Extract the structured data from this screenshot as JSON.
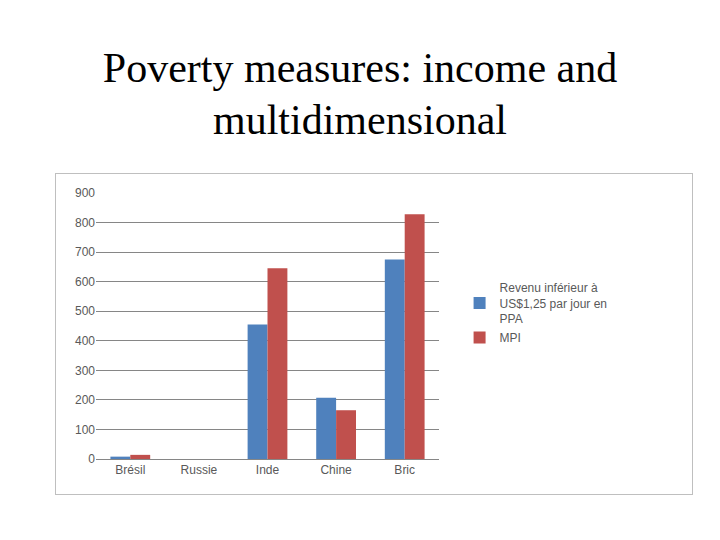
{
  "chart_data": {
    "type": "bar",
    "title": "Poverty measures: income and multidimensional",
    "categories": [
      "Brésil",
      "Russie",
      "Inde",
      "Chine",
      "Bric"
    ],
    "series": [
      {
        "name": "Revenu inférieur à US$1,25 par jour en PPA",
        "color": "#4f81bd",
        "values": [
          8,
          0,
          455,
          207,
          675
        ]
      },
      {
        "name": "MPI",
        "color": "#c0504d",
        "values": [
          14,
          0,
          645,
          165,
          828
        ]
      }
    ],
    "ylim": [
      0,
      900
    ],
    "yticks": [
      0,
      100,
      200,
      300,
      400,
      500,
      600,
      700,
      800,
      900
    ],
    "grid": true,
    "legend": "right"
  }
}
